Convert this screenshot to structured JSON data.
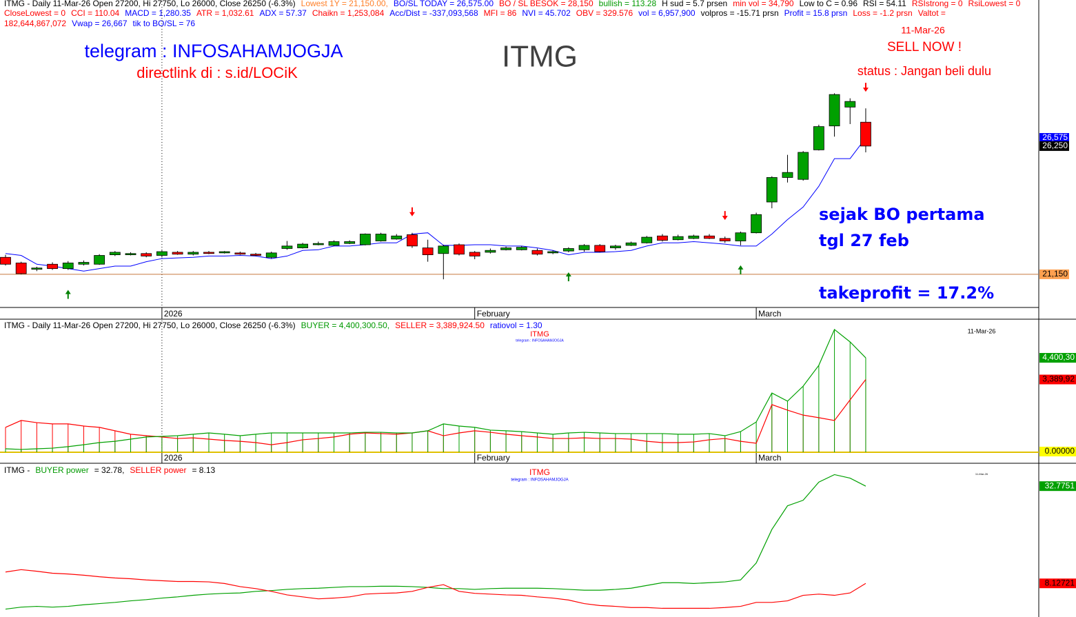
{
  "chart_data": [
    {
      "type": "candlestick",
      "title": "ITMG",
      "header": [
        [
          {
            "text": "ITMG - Daily 11-Mar-26 Open 27200, Hi 27750, Lo 26000, Close 26250 (-6.3%)",
            "color": "#000000"
          },
          {
            "text": "Lowest 1Y  = 21,150.00,",
            "color": "#ff7f27"
          },
          {
            "text": "BO/SL TODAY = 26,575.00",
            "color": "#0000ff"
          },
          {
            "text": "BO / SL BESOK  = 28,150",
            "color": "#ff0000"
          },
          {
            "text": "bullish = 113.28",
            "color": "#009900"
          },
          {
            "text": "H sud = 5.7 prsen",
            "color": "#000000"
          },
          {
            "text": "min vol = 34,790",
            "color": "#ff0000"
          },
          {
            "text": "Low to C  = 0.96",
            "color": "#000000"
          },
          {
            "text": "RSI = 54.11",
            "color": "#000000"
          },
          {
            "text": "RSIstrong = 0",
            "color": "#ff0000"
          },
          {
            "text": "RsiLowest = 0",
            "color": "#ff0000"
          }
        ],
        [
          {
            "text": "CloseLowest = 0",
            "color": "#ff0000"
          },
          {
            "text": "CCI = 110.04",
            "color": "#ff0000"
          },
          {
            "text": "MACD = 1,280.35",
            "color": "#0000ff"
          },
          {
            "text": "ATR = 1,032.61",
            "color": "#ff0000"
          },
          {
            "text": "ADX = 57.37",
            "color": "#0000ff"
          },
          {
            "text": "Chaikn = 1,253,084",
            "color": "#ff0000"
          },
          {
            "text": "Acc/Dist = -337,093,568",
            "color": "#0000ff"
          },
          {
            "text": "MFI = 86",
            "color": "#ff0000"
          },
          {
            "text": "NVI =  45.702",
            "color": "#0000ff"
          },
          {
            "text": "OBV =  329.576",
            "color": "#ff0000"
          },
          {
            "text": "vol = 6,957,900",
            "color": "#0000ff"
          },
          {
            "text": "volpros = -15.71 prsn",
            "color": "#000000"
          },
          {
            "text": "Profit = 15.8 prsn",
            "color": "#0000ff"
          },
          {
            "text": "Loss = -1.2 prsn",
            "color": "#ff0000"
          },
          {
            "text": "Valtot =",
            "color": "#ff0000"
          }
        ],
        [
          {
            "text": "182,644,867,072",
            "color": "#ff0000"
          },
          {
            "text": "Vwap = 26,667",
            "color": "#0000ff"
          },
          {
            "text": "tik to BO/SL = 76",
            "color": "#0000ff"
          }
        ]
      ],
      "annotations": [
        {
          "text": "telegram : INFOSAHAMJOGJA",
          "color": "#0000ff"
        },
        {
          "text": "directlink di : s.id/LOCiK",
          "color": "#ff0000"
        },
        {
          "text": "11-Mar-26",
          "color": "#ff0000"
        },
        {
          "text": "SELL NOW !",
          "color": "#ff0000"
        },
        {
          "text": "status : Jangan beli dulu",
          "color": "#ff0000"
        },
        {
          "text": "sejak BO pertama",
          "color": "#0000ff"
        },
        {
          "text": "tgl 27 feb",
          "color": "#0000ff"
        },
        {
          "text": "takeprofit = 17.2%",
          "color": "#0000ff"
        }
      ],
      "categories": [
        null,
        null,
        null,
        null,
        null,
        null,
        null,
        null,
        null,
        null,
        "2026",
        null,
        null,
        null,
        null,
        null,
        null,
        null,
        null,
        null,
        null,
        null,
        null,
        null,
        null,
        null,
        null,
        null,
        null,
        null,
        "February",
        null,
        null,
        null,
        null,
        null,
        null,
        null,
        null,
        null,
        null,
        null,
        null,
        null,
        null,
        null,
        null,
        null,
        "March",
        null,
        null,
        null,
        null,
        null,
        null,
        null
      ],
      "open": [
        21825,
        21600,
        21350,
        21550,
        21375,
        21550,
        21550,
        21925,
        21925,
        21975,
        21900,
        22025,
        21950,
        22025,
        22000,
        22000,
        21950,
        21825,
        22175,
        22200,
        22325,
        22300,
        22375,
        22325,
        22475,
        22550,
        22725,
        22200,
        21975,
        22325,
        22025,
        22025,
        22125,
        22125,
        22100,
        22000,
        22075,
        22125,
        22300,
        22200,
        22300,
        22400,
        22675,
        22525,
        22575,
        22675,
        22575,
        22475,
        22800,
        24025,
        25000,
        24925,
        26100,
        27050,
        27800,
        27200
      ],
      "high": [
        21925,
        21650,
        21450,
        21625,
        21675,
        21700,
        21950,
        22075,
        22025,
        22025,
        22100,
        22075,
        22075,
        22075,
        22075,
        22050,
        22000,
        22050,
        22475,
        22400,
        22450,
        22500,
        22500,
        22775,
        22800,
        22750,
        22800,
        22525,
        22325,
        22375,
        22075,
        22175,
        22250,
        22275,
        22175,
        22100,
        22225,
        22350,
        22350,
        22325,
        22450,
        22675,
        22750,
        22725,
        22725,
        22750,
        22650,
        22850,
        23600,
        25050,
        25900,
        26050,
        27100,
        28350,
        28150,
        27750
      ],
      "low": [
        21500,
        21150,
        21275,
        21325,
        21325,
        21500,
        21525,
        21875,
        21900,
        21825,
        21825,
        21925,
        21900,
        21950,
        21975,
        21925,
        21875,
        21775,
        22125,
        22175,
        22300,
        22275,
        22350,
        22300,
        22450,
        22525,
        22200,
        21650,
        20950,
        21900,
        21750,
        21975,
        22100,
        22100,
        21900,
        21950,
        22025,
        22050,
        22025,
        22125,
        22275,
        22375,
        22450,
        22500,
        22550,
        22550,
        22400,
        22300,
        22775,
        23775,
        24800,
        24875,
        26075,
        26625,
        27125,
        26000
      ],
      "close": [
        21550,
        21175,
        21400,
        21375,
        21600,
        21625,
        21900,
        22025,
        21975,
        21875,
        22050,
        21950,
        22025,
        21975,
        22050,
        21950,
        21900,
        22000,
        22275,
        22350,
        22375,
        22450,
        22450,
        22750,
        22750,
        22675,
        22275,
        21925,
        22275,
        21950,
        21875,
        22100,
        22200,
        22225,
        21950,
        22050,
        22175,
        22300,
        22050,
        22275,
        22400,
        22625,
        22500,
        22650,
        22675,
        22575,
        22475,
        22800,
        23525,
        25000,
        25200,
        26000,
        27025,
        28300,
        28025,
        26250
      ],
      "up_color": "#00a000",
      "down_color": "#ff0000",
      "bo_sl": {
        "color": "#0000ff",
        "values": [
          21975,
          21900,
          21550,
          21475,
          21375,
          21275,
          21375,
          21475,
          21475,
          21650,
          21775,
          21800,
          21825,
          21875,
          21875,
          21900,
          21875,
          21775,
          21875,
          22100,
          22125,
          22275,
          22275,
          22325,
          22400,
          22400,
          22750,
          22800,
          22300,
          22300,
          22325,
          22325,
          22275,
          22275,
          22200,
          22100,
          21925,
          22025,
          22025,
          22050,
          22100,
          22275,
          22400,
          22400,
          22450,
          22400,
          22350,
          22275,
          22275,
          22750,
          23325,
          23825,
          24650,
          25750,
          25750,
          26575
        ]
      },
      "lowest_line": {
        "value": 21150,
        "color": "#c8783c"
      },
      "price_labels": [
        {
          "value": 26575,
          "label": "26,575",
          "color": "#0000ff",
          "text_color": "#ffffff"
        },
        {
          "value": 26250,
          "label": "26,250",
          "color": "#000000",
          "text_color": "#ffffff"
        },
        {
          "value": 21150,
          "label": "21,150",
          "color": "#ffa050",
          "text_color": "#000000"
        }
      ],
      "buy_signals": [
        4,
        36,
        47
      ],
      "buy_color": "#008000",
      "sell_signals": [
        26,
        46,
        55
      ],
      "sell_color": "#ff0000",
      "ylim": [
        19830,
        32060
      ]
    },
    {
      "type": "line",
      "header": [
        [
          {
            "text": "ITMG - Daily 11-Mar-26 Open 27200, Hi 27750, Lo 26000, Close 26250 (-6.3%)",
            "color": "#000000"
          },
          {
            "text": "BUYER = 4,400,300.50,",
            "color": "#009900"
          },
          {
            "text": "SELLER = 3,389,924.50",
            "color": "#ff0000"
          },
          {
            "text": "ratiovol = 1.30",
            "color": "#0000ff"
          }
        ]
      ],
      "annotations": [
        {
          "text": "ITMG",
          "color": "#ff0000"
        },
        {
          "text": "telegram : INFOSAHAMJOGJA",
          "color": "#0000ff"
        },
        {
          "text": "11-Mar-26",
          "color": "#000000"
        }
      ],
      "categories": [
        null,
        null,
        null,
        null,
        null,
        null,
        null,
        null,
        null,
        null,
        "2026",
        null,
        null,
        null,
        null,
        null,
        null,
        null,
        null,
        null,
        null,
        null,
        null,
        null,
        null,
        null,
        null,
        null,
        null,
        null,
        "February",
        null,
        null,
        null,
        null,
        null,
        null,
        null,
        null,
        null,
        null,
        null,
        null,
        null,
        null,
        null,
        null,
        null,
        "March",
        null,
        null,
        null,
        null,
        null,
        null,
        null
      ],
      "stems": true,
      "series": [
        {
          "color": "#ff0000",
          "values": [
            1160000,
            1480000,
            1380000,
            1320000,
            1320000,
            1220000,
            1160000,
            1000000,
            840000,
            770000,
            710000,
            640000,
            670000,
            610000,
            550000,
            510000,
            450000,
            350000,
            450000,
            580000,
            640000,
            710000,
            840000,
            900000,
            870000,
            840000,
            900000,
            1000000,
            770000,
            900000,
            1000000,
            930000,
            840000,
            770000,
            710000,
            640000,
            640000,
            670000,
            640000,
            640000,
            610000,
            510000,
            450000,
            450000,
            480000,
            580000,
            640000,
            510000,
            420000,
            2220000,
            1960000,
            1730000,
            1610000,
            1480000,
            2440000,
            3389924.5
          ]
        },
        {
          "color": "#00a000",
          "values": [
            160000,
            130000,
            160000,
            190000,
            260000,
            350000,
            450000,
            510000,
            610000,
            710000,
            740000,
            770000,
            840000,
            900000,
            840000,
            770000,
            840000,
            900000,
            900000,
            900000,
            900000,
            900000,
            900000,
            930000,
            930000,
            900000,
            900000,
            1000000,
            1320000,
            1220000,
            1160000,
            1030000,
            1000000,
            960000,
            900000,
            840000,
            900000,
            930000,
            900000,
            870000,
            870000,
            870000,
            870000,
            840000,
            840000,
            870000,
            770000,
            960000,
            1410000,
            2760000,
            2380000,
            3080000,
            4050000,
            5720000,
            5140000,
            4400300.5
          ]
        }
      ],
      "price_labels": [
        {
          "value": 4400300.5,
          "label": "4,400,30",
          "color": "#00a000",
          "text_color": "#ffffff"
        },
        {
          "value": 3389924.5,
          "label": "3,389,92",
          "color": "#ff0000",
          "text_color": "#000000"
        },
        {
          "value": 0,
          "label": "0.00000",
          "color": "#ffff00",
          "text_color": "#000000"
        }
      ],
      "zero_color": "#e0c000",
      "ylim": [
        0,
        6200000
      ]
    },
    {
      "type": "line",
      "header": [
        [
          {
            "text": "ITMG -",
            "color": "#000000"
          },
          {
            "text": "BUYER power",
            "color": "#009900"
          },
          {
            "text": "=  32.78,",
            "color": "#000000"
          },
          {
            "text": "SELLER power",
            "color": "#ff0000"
          },
          {
            "text": "=  8.13",
            "color": "#000000"
          }
        ]
      ],
      "annotations": [
        {
          "text": "ITMG",
          "color": "#ff0000"
        },
        {
          "text": "telegram : INFOSAHAMJOGJA",
          "color": "#0000ff"
        },
        {
          "text": "11-Mar-26",
          "color": "#000000"
        }
      ],
      "series": [
        {
          "color": "#00a000",
          "values": [
            1.6,
            2.1,
            2.3,
            2.1,
            2.3,
            2.7,
            3.0,
            3.3,
            3.7,
            4.0,
            4.4,
            4.7,
            5.1,
            5.4,
            5.6,
            5.7,
            6.1,
            6.3,
            6.6,
            6.8,
            6.9,
            7.1,
            7.3,
            7.3,
            7.4,
            7.4,
            7.3,
            7.1,
            6.8,
            6.8,
            6.6,
            6.8,
            6.9,
            6.9,
            6.9,
            6.8,
            6.6,
            6.4,
            6.4,
            6.6,
            6.9,
            7.6,
            8.3,
            8.3,
            8.1,
            8.3,
            8.5,
            9.0,
            13.3,
            21.8,
            27.8,
            29.2,
            33.8,
            35.7,
            34.8,
            32.7751
          ]
        },
        {
          "color": "#ff0000",
          "values": [
            11.0,
            11.6,
            11.2,
            10.7,
            10.5,
            10.2,
            9.8,
            9.5,
            9.3,
            9.0,
            8.8,
            8.6,
            8.6,
            8.5,
            8.1,
            7.3,
            6.8,
            6.1,
            5.2,
            4.7,
            4.2,
            4.4,
            4.7,
            5.4,
            5.6,
            5.7,
            6.1,
            7.1,
            7.8,
            6.1,
            5.6,
            5.4,
            5.2,
            5.1,
            4.7,
            4.4,
            3.9,
            3.0,
            2.5,
            2.3,
            2.0,
            2.0,
            1.8,
            1.8,
            1.8,
            1.8,
            2.0,
            2.3,
            3.3,
            3.3,
            3.7,
            5.1,
            5.4,
            5.1,
            5.7,
            8.12721
          ]
        }
      ],
      "price_labels": [
        {
          "value": 32.7751,
          "label": "32.7751",
          "color": "#00a000",
          "text_color": "#ffffff"
        },
        {
          "value": 8.12721,
          "label": "8.12721",
          "color": "#ff0000",
          "text_color": "#000000"
        }
      ],
      "ylim": [
        -0.4,
        38.4
      ]
    }
  ]
}
